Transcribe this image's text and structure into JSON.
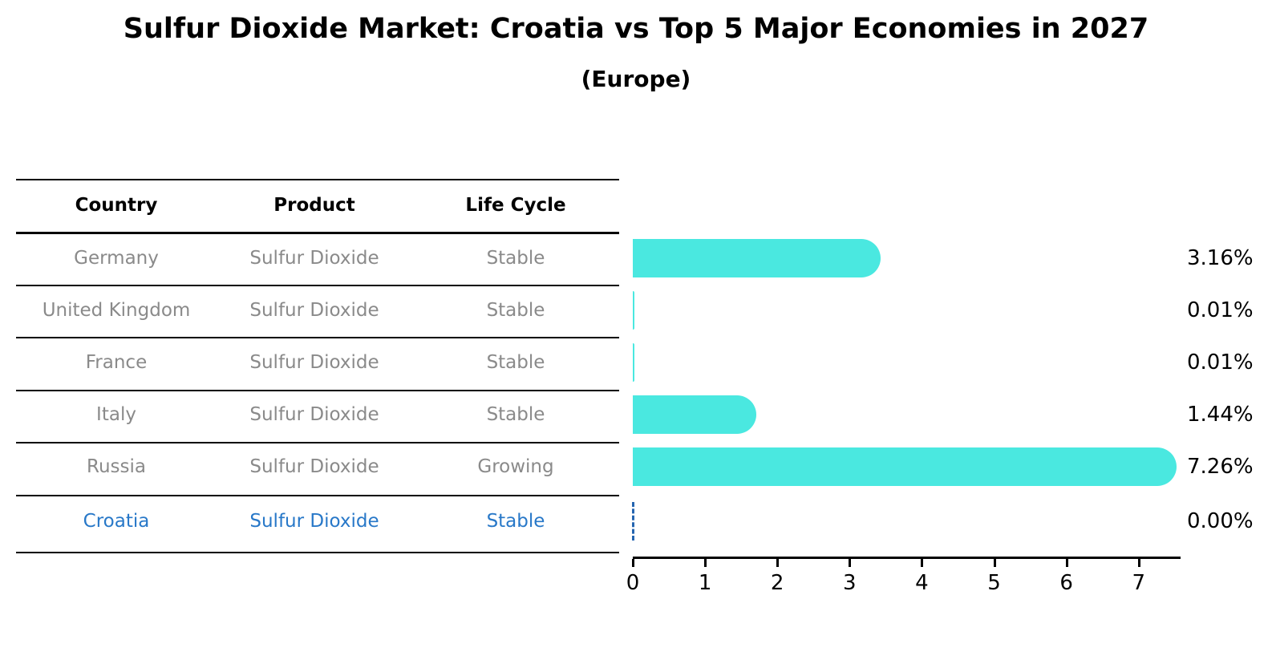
{
  "title": "Sulfur Dioxide Market: Croatia vs Top 5 Major Economies in 2027",
  "subtitle": "(Europe)",
  "table": {
    "headers": [
      "Country",
      "Product",
      "Life Cycle"
    ],
    "rows": [
      {
        "country": "Germany",
        "product": "Sulfur Dioxide",
        "life_cycle": "Stable",
        "highlighted": false
      },
      {
        "country": "United Kingdom",
        "product": "Sulfur Dioxide",
        "life_cycle": "Stable",
        "highlighted": false
      },
      {
        "country": "France",
        "product": "Sulfur Dioxide",
        "life_cycle": "Stable",
        "highlighted": false
      },
      {
        "country": "Italy",
        "product": "Sulfur Dioxide",
        "life_cycle": "Stable",
        "highlighted": false
      },
      {
        "country": "Russia",
        "product": "Sulfur Dioxide",
        "life_cycle": "Growing",
        "highlighted": false
      },
      {
        "country": "Croatia",
        "product": "Sulfur Dioxide",
        "life_cycle": "Stable",
        "highlighted": true
      }
    ]
  },
  "chart_data": {
    "type": "bar",
    "orientation": "horizontal",
    "title": "Sulfur Dioxide Market: Croatia vs Top 5 Major Economies in 2027",
    "subtitle": "(Europe)",
    "categories": [
      "Germany",
      "United Kingdom",
      "France",
      "Italy",
      "Russia",
      "Croatia"
    ],
    "values": [
      3.16,
      0.01,
      0.01,
      1.44,
      7.26,
      0.0
    ],
    "value_labels": [
      "3.16%",
      "0.01%",
      "0.01%",
      "1.44%",
      "7.26%",
      "0.00%"
    ],
    "xlim": [
      0,
      7.58
    ],
    "xticks": [
      0,
      1,
      2,
      3,
      4,
      5,
      6,
      7
    ],
    "grid": false,
    "legend": "none",
    "bar_color": "#4AE8E0",
    "highlight_marker": "dashed-line-at-zero",
    "highlight_color": "#2878C8"
  },
  "colors": {
    "background": "#FFFFFF",
    "bar": "#4AE8E0",
    "table_text": "#8A8A8A",
    "header_text": "#000000",
    "highlight_text": "#2878C8",
    "axis": "#000000",
    "zero_marker": "#2565B0"
  }
}
